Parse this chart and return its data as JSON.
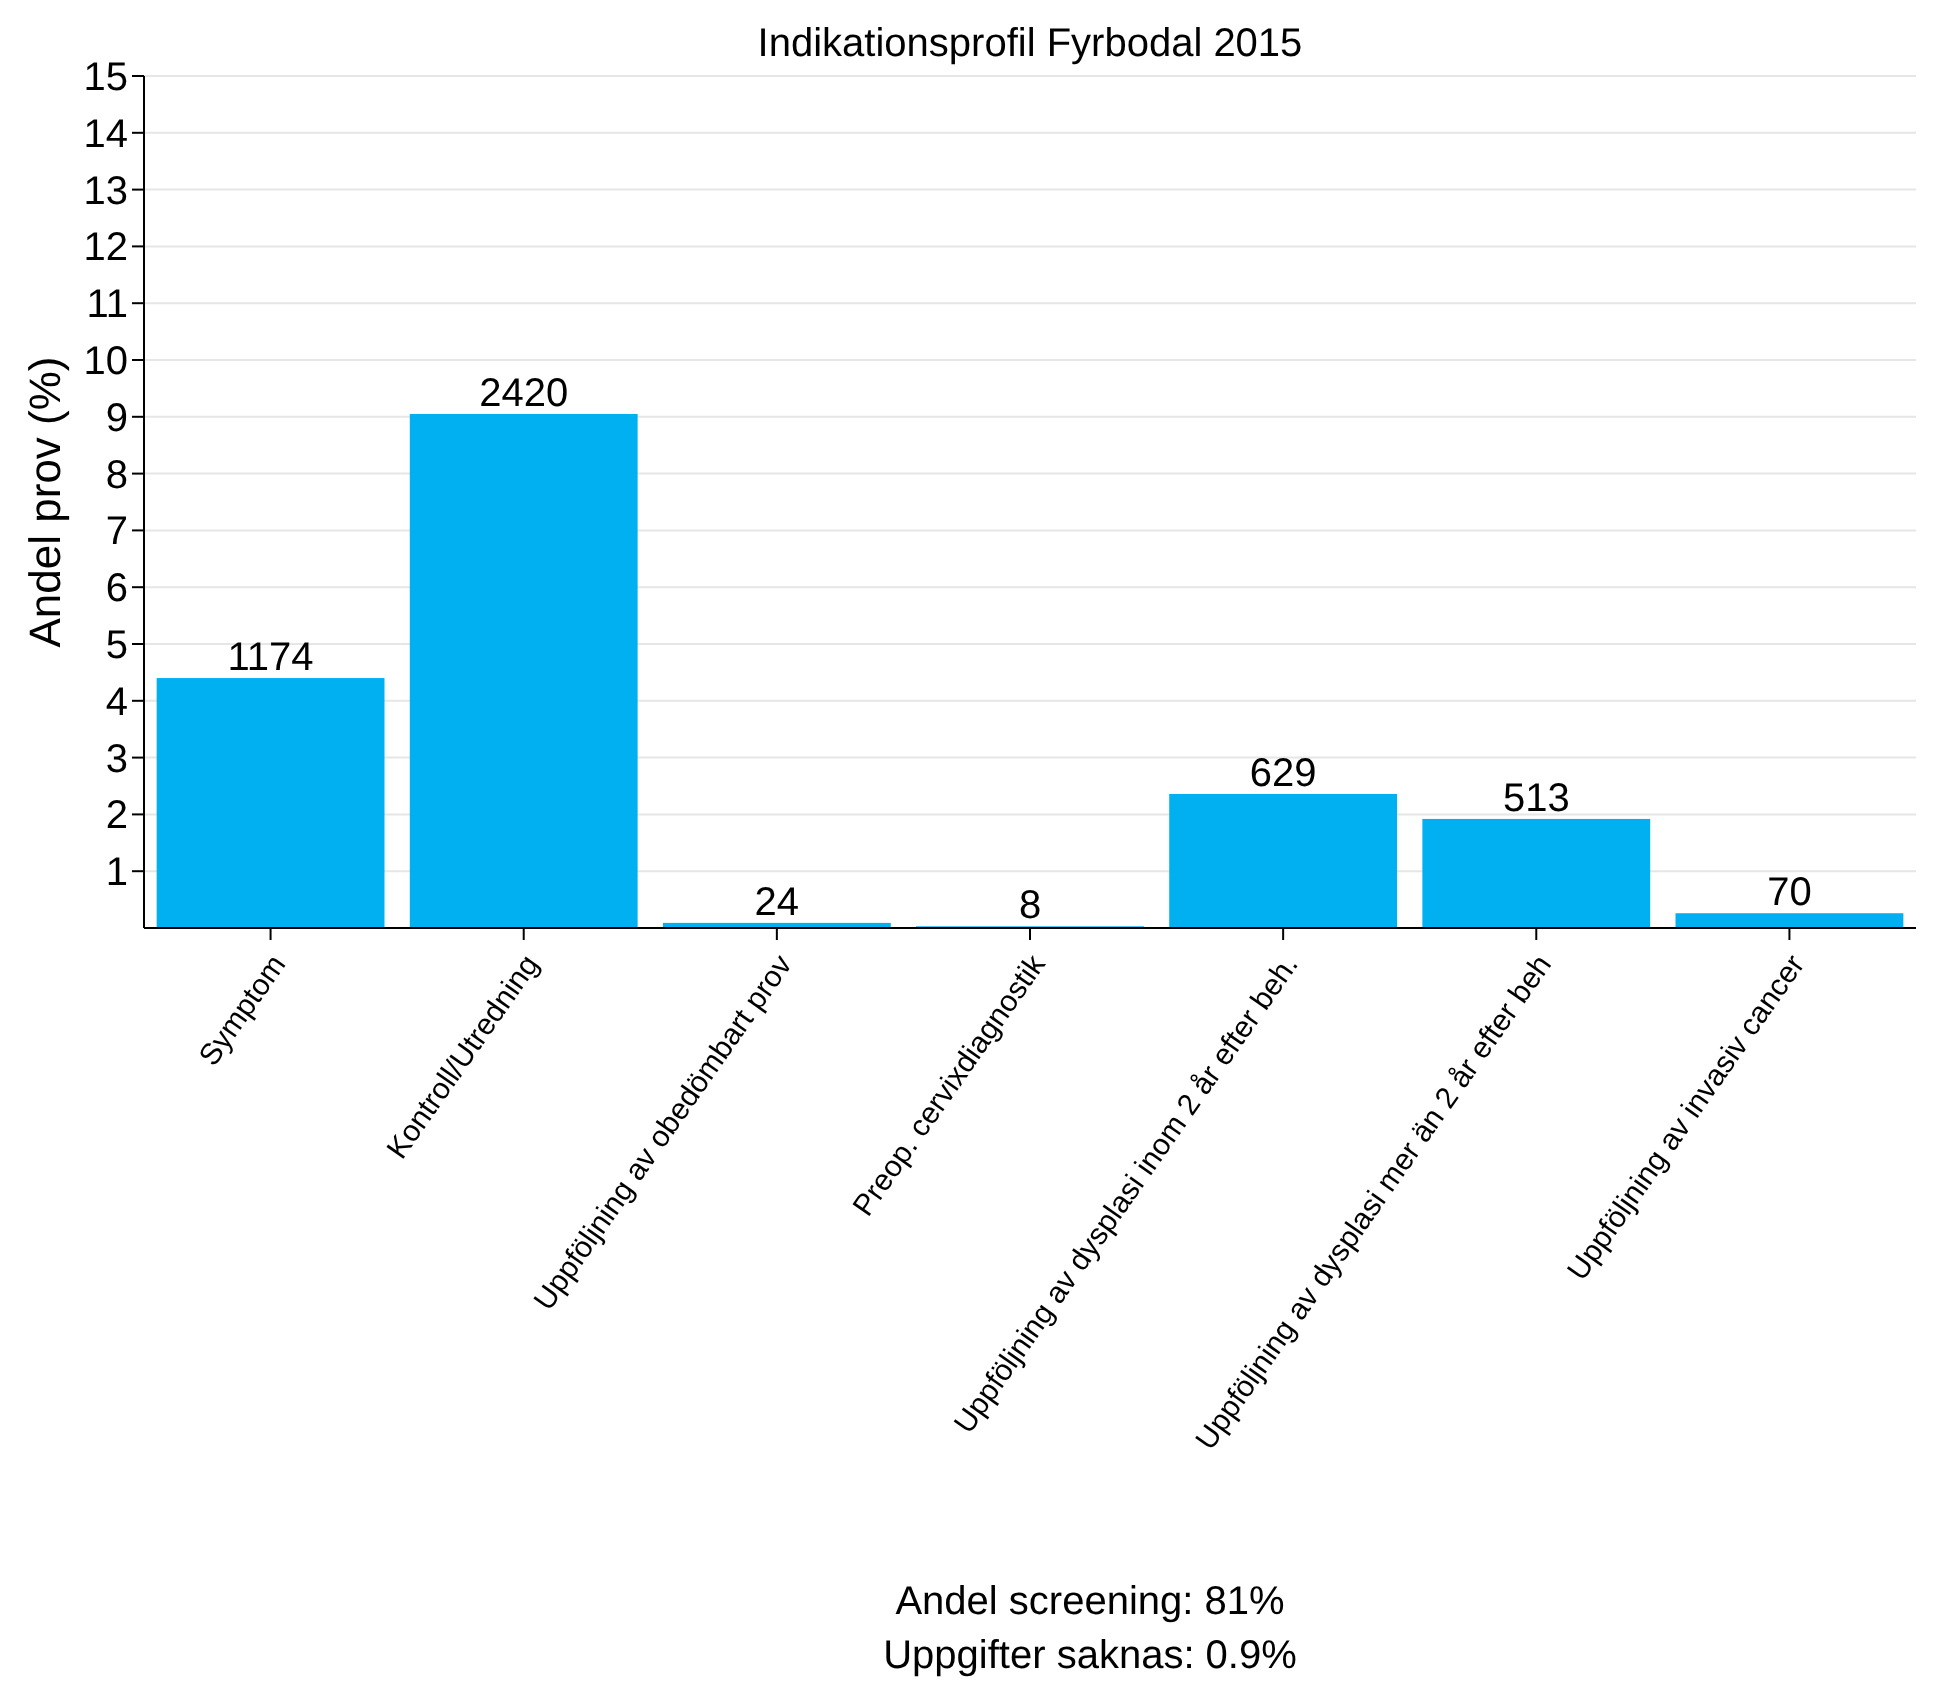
{
  "chart_data": {
    "type": "bar",
    "title": "Indikationsprofil Fyrbodal 2015",
    "ylabel": "Andel prov (%)",
    "categories": [
      "Symptom",
      "Kontroll/Utredning",
      "Uppföljning av obedömbart prov",
      "Preop. cervixdiagnostik",
      "Uppföljning av dysplasi inom 2 år efter beh.",
      "Uppföljning av dysplasi mer än 2 år efter beh",
      "Uppföljning av invasiv cancer"
    ],
    "values": [
      4.4,
      9.05,
      0.09,
      0.03,
      2.36,
      1.92,
      0.26
    ],
    "color": "#00b0f0",
    "ylim": [
      0,
      15
    ],
    "yticks": [
      1,
      2,
      3,
      4,
      5,
      6,
      7,
      8,
      9,
      10,
      11,
      12,
      13,
      14,
      15
    ],
    "grid": "y",
    "annotations": [
      {
        "text": "1174",
        "x": "Symptom",
        "y": 4.4
      },
      {
        "text": "2420",
        "x": "Kontroll/Utredning",
        "y": 9.05
      },
      {
        "text": "24",
        "x": "Uppföljning av obedömbart prov",
        "y": 0.09
      },
      {
        "text": "8",
        "x": "Preop. cervixdiagnostik",
        "y": 0.03
      },
      {
        "text": "629",
        "x": "Uppföljning av dysplasi inom 2 år efter beh.",
        "y": 2.36
      },
      {
        "text": "513",
        "x": "Uppföljning av dysplasi mer än 2 år efter beh",
        "y": 1.92
      },
      {
        "text": "70",
        "x": "Uppföljning av invasiv cancer",
        "y": 0.26
      },
      "Andel screening: 81%",
      "Uppgifter saknas: 0.9%"
    ]
  }
}
